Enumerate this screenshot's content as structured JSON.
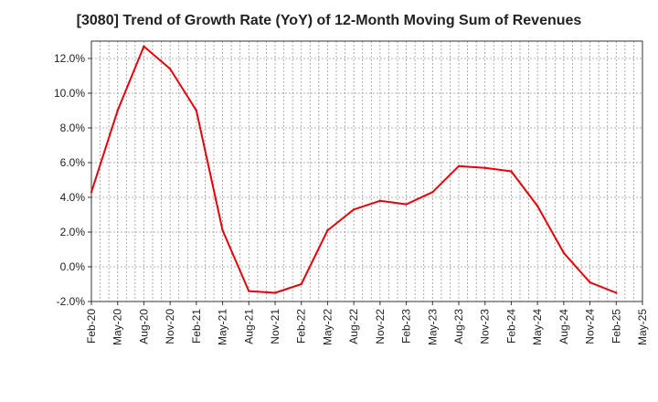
{
  "chart_data": {
    "type": "line",
    "title": "[3080]  Trend of Growth Rate (YoY) of 12-Month Moving Sum of Revenues",
    "xlabel": "",
    "ylabel": "",
    "ylim": [
      -2.0,
      13.0
    ],
    "yticks": [
      "-2.0%",
      "0.0%",
      "2.0%",
      "4.0%",
      "6.0%",
      "8.0%",
      "10.0%",
      "12.0%"
    ],
    "ytick_values": [
      -2,
      0,
      2,
      4,
      6,
      8,
      10,
      12
    ],
    "categories": [
      "Feb-20",
      "May-20",
      "Aug-20",
      "Nov-20",
      "Feb-21",
      "May-21",
      "Aug-21",
      "Nov-21",
      "Feb-22",
      "May-22",
      "Aug-22",
      "Nov-22",
      "Feb-23",
      "May-23",
      "Aug-23",
      "Nov-23",
      "Feb-24",
      "May-24",
      "Aug-24",
      "Nov-24",
      "Feb-25",
      "May-25"
    ],
    "grid": true,
    "series": [
      {
        "color": "#e8000b",
        "values": [
          4.3,
          9.0,
          12.7,
          11.4,
          9.0,
          2.1,
          -1.4,
          -1.5,
          -1.0,
          2.1,
          3.3,
          3.8,
          3.6,
          4.3,
          5.8,
          5.7,
          5.5,
          3.5,
          0.8,
          -0.9,
          -1.5,
          null
        ]
      }
    ]
  }
}
